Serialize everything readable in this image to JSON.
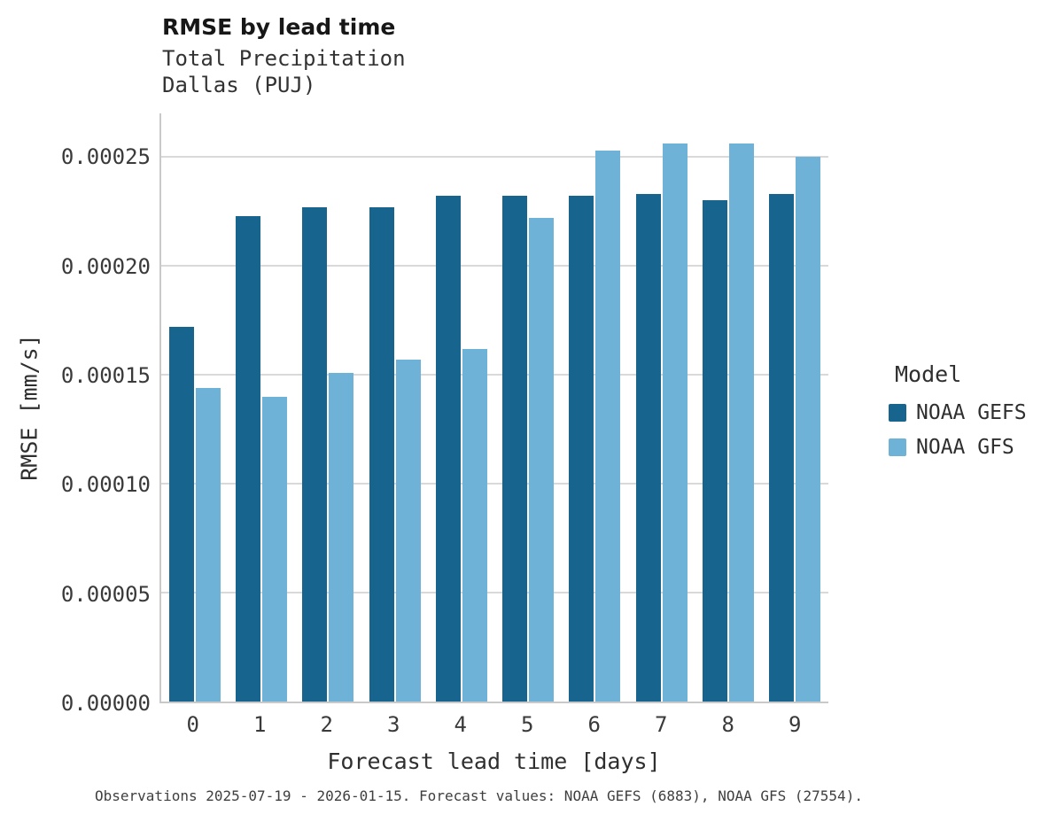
{
  "header": {
    "title": "RMSE by lead time",
    "subtitle_line1": "Total Precipitation",
    "subtitle_line2": "Dallas (PUJ)"
  },
  "footer": {
    "note": "Observations 2025-07-19 - 2026-01-15. Forecast values: NOAA GEFS (6883), NOAA GFS (27554)."
  },
  "chart_data": {
    "type": "bar",
    "title": "RMSE by lead time",
    "subtitle": [
      "Total Precipitation",
      "Dallas (PUJ)"
    ],
    "xlabel": "Forecast lead time [days]",
    "ylabel": "RMSE [mm/s]",
    "categories": [
      "0",
      "1",
      "2",
      "3",
      "4",
      "5",
      "6",
      "7",
      "8",
      "9"
    ],
    "series": [
      {
        "name": "NOAA GEFS",
        "color": "#17648f",
        "values": [
          0.000172,
          0.000223,
          0.000227,
          0.000227,
          0.000232,
          0.000232,
          0.000232,
          0.000233,
          0.00023,
          0.000233
        ]
      },
      {
        "name": "NOAA GFS",
        "color": "#6fb2d8",
        "values": [
          0.000144,
          0.00014,
          0.000151,
          0.000157,
          0.000162,
          0.000222,
          0.000253,
          0.000256,
          0.000256,
          0.00025
        ]
      }
    ],
    "ylim": [
      0,
      0.00027
    ],
    "yticks": [
      0,
      5e-05,
      0.0001,
      0.00015,
      0.0002,
      0.00025
    ],
    "grid": true,
    "legend_title": "Model",
    "legend_position": "right"
  }
}
